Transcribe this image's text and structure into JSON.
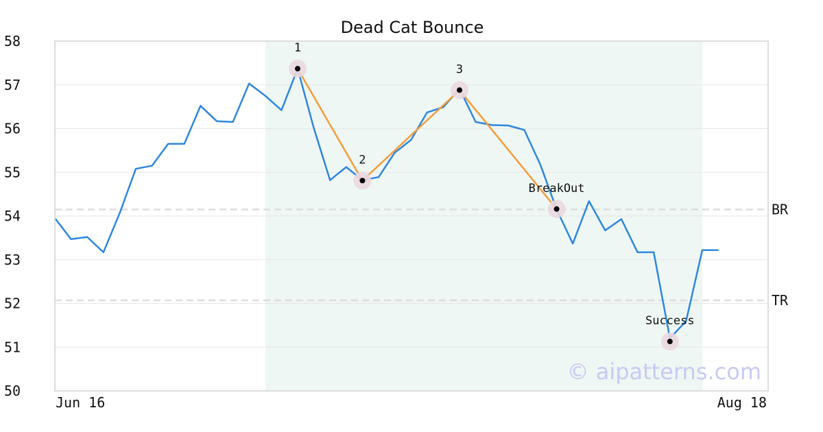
{
  "chart_data": {
    "type": "line",
    "title": "Dead Cat Bounce",
    "xlabel": "",
    "ylabel": "",
    "ylim": [
      50,
      58
    ],
    "yticks": [
      50,
      51,
      52,
      53,
      54,
      55,
      56,
      57,
      58
    ],
    "x_tick_labels": [
      "Jun 16",
      "Aug 18"
    ],
    "grid": "horizontal",
    "series": [
      {
        "color": "#2e86de",
        "values": [
          53.95,
          53.47,
          53.52,
          53.17,
          54.06,
          55.08,
          55.15,
          55.65,
          55.65,
          56.52,
          56.17,
          56.15,
          57.03,
          56.75,
          56.42,
          57.37,
          56.01,
          54.82,
          55.12,
          54.82,
          54.89,
          55.45,
          55.74,
          56.37,
          56.49,
          56.91,
          56.15,
          56.08,
          56.07,
          55.97,
          55.17,
          54.15,
          53.37,
          54.34,
          53.67,
          53.93,
          53.17,
          53.17,
          51.2,
          51.6,
          53.22,
          53.22
        ]
      }
    ],
    "highlight_region": {
      "from_index": 13,
      "to_index": 40,
      "color": "#eef7f3"
    },
    "pattern_line": {
      "color": "#f39c3c",
      "points": [
        {
          "index": 15,
          "value": 57.37,
          "label": "1"
        },
        {
          "index": 19,
          "value": 54.81,
          "label": "2"
        },
        {
          "index": 25,
          "value": 56.88,
          "label": "3"
        },
        {
          "index": 31,
          "value": 54.16,
          "label": "BreakOut"
        }
      ]
    },
    "markers": [
      {
        "index": 15,
        "value": 57.37,
        "label": "1"
      },
      {
        "index": 19,
        "value": 54.81,
        "label": "2"
      },
      {
        "index": 25,
        "value": 56.88,
        "label": "3"
      },
      {
        "index": 31,
        "value": 54.16,
        "label": "BreakOut"
      },
      {
        "index": 38,
        "value": 51.13,
        "label": "Success"
      }
    ],
    "reference_lines": [
      {
        "label": "BR",
        "value": 54.15
      },
      {
        "label": "TR",
        "value": 52.07
      }
    ],
    "watermark": "© aipatterns.com",
    "colors": {
      "line": "#2e86de",
      "pattern": "#f39c3c",
      "marker_halo": "#ead7e0",
      "ref_line": "#dddddd",
      "grid": "#e6e6e6",
      "frame": "#dddddd"
    }
  }
}
